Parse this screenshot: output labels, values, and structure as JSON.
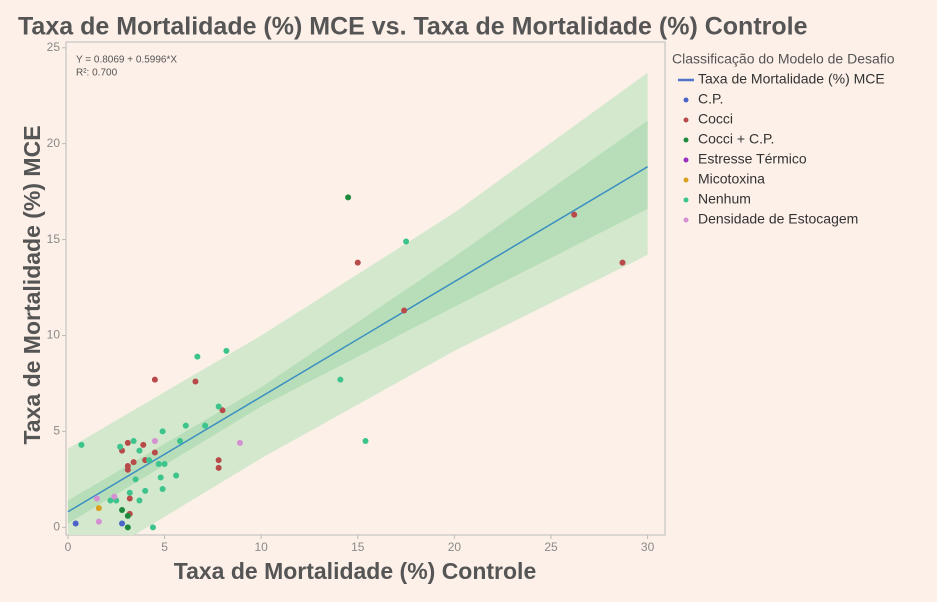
{
  "chart_data": {
    "type": "scatter",
    "title": "Taxa de Mortalidade (%) MCE vs. Taxa de Mortalidade (%) Controle",
    "x_label": "Taxa de Mortalidade (%) Controle",
    "y_label": "Taxa de Mortalidade (%) MCE",
    "annotations": [
      "Y = 0.8069 + 0.5996*X",
      "R²: 0.700"
    ],
    "legend_title": "Classificação do Modelo de Desafio",
    "xlim": [
      -0.1,
      30.9
    ],
    "ylim": [
      -0.4,
      25.3
    ],
    "xticks": [
      0,
      5,
      10,
      15,
      20,
      25,
      30
    ],
    "yticks": [
      0,
      5,
      10,
      15,
      20,
      25
    ],
    "bands": [
      {
        "color": "#d3e8cc",
        "x": [
          0,
          10,
          20,
          30
        ],
        "lower": [
          -2.5,
          3.6,
          9.2,
          14.2
        ],
        "upper": [
          4.1,
          10.0,
          16.4,
          23.7
        ]
      },
      {
        "color": "#b7deb8",
        "x": [
          0,
          10,
          20,
          30
        ],
        "lower": [
          0.2,
          6.3,
          11.5,
          16.6
        ],
        "upper": [
          1.4,
          7.3,
          14.1,
          21.2
        ]
      }
    ],
    "fit": {
      "name": "Taxa de Mortalidade (%) MCE",
      "color": "#3b8fc2",
      "x": [
        0,
        30
      ],
      "values": [
        0.81,
        18.8
      ]
    },
    "series": [
      {
        "name": "C.P.",
        "color": "#4a64c8",
        "x": [
          0.4,
          2.8
        ],
        "values": [
          0.2,
          0.2
        ]
      },
      {
        "name": "Cocci",
        "color": "#b84a4a",
        "x": [
          4.5,
          6.6,
          15.0,
          17.4,
          26.2,
          28.7,
          8.0,
          7.8,
          7.8,
          3.1,
          2.8,
          3.9,
          4.5,
          3.1,
          3.1,
          3.4,
          3.2,
          3.2,
          4.0
        ],
        "values": [
          7.7,
          7.6,
          13.8,
          11.3,
          16.3,
          13.8,
          6.1,
          3.5,
          3.1,
          4.4,
          4.0,
          4.3,
          3.9,
          3.2,
          3.0,
          3.4,
          1.5,
          0.7,
          3.5
        ]
      },
      {
        "name": "Cocci + C.P.",
        "color": "#1f8a3c",
        "x": [
          14.5,
          3.1,
          3.1,
          2.8
        ],
        "values": [
          17.2,
          0,
          0.6,
          0.9
        ]
      },
      {
        "name": "Estresse Térmico",
        "color": "#9a30c0",
        "x": [],
        "values": []
      },
      {
        "name": "Micotoxina",
        "color": "#d9a020",
        "x": [
          1.6
        ],
        "values": [
          1.0
        ]
      },
      {
        "name": "Nenhum",
        "color": "#3cc48c",
        "x": [
          17.5,
          6.7,
          8.2,
          14.1,
          15.4,
          0.7,
          7.8,
          6.1,
          7.1,
          5.8,
          4.9,
          3.4,
          4.2,
          4.7,
          5.0,
          5.6,
          4.8,
          4.9,
          3.5,
          4.0,
          3.7,
          3.2,
          2.5,
          2.2,
          4.4,
          3.7,
          2.7
        ],
        "values": [
          14.9,
          8.9,
          9.2,
          7.7,
          4.5,
          4.3,
          6.3,
          5.3,
          5.3,
          4.5,
          5.0,
          4.5,
          3.5,
          3.3,
          3.3,
          2.7,
          2.6,
          2.0,
          2.5,
          1.9,
          1.4,
          1.8,
          1.4,
          1.4,
          0,
          4.0,
          4.2
        ]
      },
      {
        "name": "Densidade de Estocagem",
        "color": "#d590d2",
        "x": [
          8.9,
          4.5,
          1.5,
          1.6,
          2.4
        ],
        "values": [
          4.4,
          4.5,
          1.5,
          0.3,
          1.6
        ]
      }
    ]
  }
}
